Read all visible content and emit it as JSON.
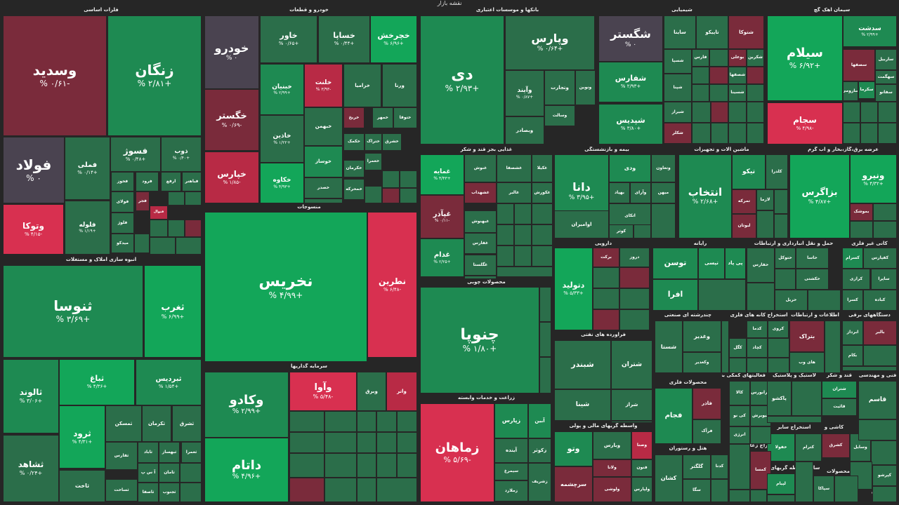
{
  "title": "نقشه بازار",
  "colors": {
    "background": "#262626",
    "neutral": "#4a4350",
    "up1": "#2b6e4a",
    "up2": "#1e8a52",
    "up3": "#13a659",
    "down1": "#7a2b3b",
    "down2": "#b82a45",
    "down3": "#d83050"
  },
  "chart_data": {
    "type": "heatmap",
    "sectors": [
      "فلزات اساسی",
      "خودرو و قطعات",
      "بانکها و موسسات اعتباری",
      "شیمیایی",
      "سیمان آهک گچ",
      "انبوه سازی املاک و مستغلات",
      "منسوجات",
      "غذایی بجز قند و شکر",
      "بیمه و بازنشستگی",
      "ماشین آلات و تجهیزات",
      "عرضه برق،گاز،بخار و آب گرم",
      "محصولات چوبی",
      "دارویی",
      "رایانه",
      "حمل و نقل انبارداری و ارتباطات",
      "کانی غیر فلزی",
      "چندرشته ای صنعتی",
      "اطلاعات و ارتباطات",
      "استخراج کانه های فلزی",
      "دستگاههای برقی",
      "سرمایه گذاریها",
      "زراعت و خدمات وابسته",
      "فرآورده های نفتی",
      "محصولات فلزی",
      "فعالیتهای کمکی به",
      "لاستیک و پلاستیک",
      "قند و شکر",
      "فنی و مهندسی",
      "واسطه گریهای مالی و پولی",
      "استخراج زغال سنگ",
      "استخراج سایر",
      "کاشی و",
      "سایر واسطه گریهای",
      "محصولات",
      "هتل و رستوران",
      "خرده"
    ],
    "tiles": [
      {
        "symbol": "وسدید",
        "change": "-۰/۶۱ %",
        "value": -0.61
      },
      {
        "symbol": "زنگان",
        "change": "+۲/۸۱ %",
        "value": 2.81
      },
      {
        "symbol": "فولاد",
        "change": "۰ %",
        "value": 0
      },
      {
        "symbol": "فملی",
        "change": "+۰/۱۴ %",
        "value": 0.14
      },
      {
        "symbol": "فسوژ",
        "change": "+۰/۴۸ %",
        "value": 0.48
      },
      {
        "symbol": "ذوب",
        "change": "+۰/۴۰ %",
        "value": 0.4
      },
      {
        "symbol": "وتوکا",
        "change": "-۴/۱۵ %",
        "value": -4.15
      },
      {
        "symbol": "فلوله",
        "change": "+۱/۱۹ %",
        "value": 1.19
      },
      {
        "symbol": "فخوز",
        "change": "",
        "value": 0.1
      },
      {
        "symbol": "فرود",
        "change": "",
        "value": 0.2
      },
      {
        "symbol": "ارفع",
        "change": "",
        "value": 0.1
      },
      {
        "symbol": "فباهنر",
        "change": "",
        "value": 0.1
      },
      {
        "symbol": "فجر",
        "change": "",
        "value": -0.2
      },
      {
        "symbol": "فولای",
        "change": "",
        "value": 0.1
      },
      {
        "symbol": "فلوژ",
        "change": "",
        "value": 0.1
      },
      {
        "symbol": "فنوال",
        "change": "",
        "value": -1.5
      },
      {
        "symbol": "میدکو",
        "change": "",
        "value": 0.1
      },
      {
        "symbol": "ثنوسا",
        "change": "+۳/۶۹ %",
        "value": 3.69
      },
      {
        "symbol": "ثغرب",
        "change": "+۶/۹۹ %",
        "value": 6.99
      },
      {
        "symbol": "ثالوند",
        "change": "+۳/۰۶ %",
        "value": 3.06
      },
      {
        "symbol": "ثباغ",
        "change": "+۴/۳۶ %",
        "value": 4.36
      },
      {
        "symbol": "ثبردیس",
        "change": "+۱/۵۴ %",
        "value": 1.54
      },
      {
        "symbol": "ثرود",
        "change": "+۴/۳۱ %",
        "value": 4.31
      },
      {
        "symbol": "ثمسکن",
        "change": "",
        "value": 1.2
      },
      {
        "symbol": "ثکرمان",
        "change": "",
        "value": 0.3
      },
      {
        "symbol": "ثشرق",
        "change": "",
        "value": 1.1
      },
      {
        "symbol": "ثشاهد",
        "change": "+۰/۲۴ %",
        "value": 0.24
      },
      {
        "symbol": "ثاخت",
        "change": "",
        "value": 1.0
      },
      {
        "symbol": "ثفارس",
        "change": "",
        "value": 1.0
      },
      {
        "symbol": "ثاباد",
        "change": "",
        "value": 0.2
      },
      {
        "symbol": "ثبهساز",
        "change": "",
        "value": 0.3
      },
      {
        "symbol": "ثعمرا",
        "change": "",
        "value": 0.2
      },
      {
        "symbol": "آ س پ",
        "change": "",
        "value": 1.0
      },
      {
        "symbol": "ثامان",
        "change": "",
        "value": 0.3
      },
      {
        "symbol": "ثساخت",
        "change": "",
        "value": 0.1
      },
      {
        "symbol": "ثاصفا",
        "change": "",
        "value": 0.1
      },
      {
        "symbol": "ثجنوب",
        "change": "",
        "value": 0.2
      },
      {
        "symbol": "خودرو",
        "change": "۰ %",
        "value": 0
      },
      {
        "symbol": "خاور",
        "change": "+۰/۶۵ %",
        "value": 0.65
      },
      {
        "symbol": "خساپا",
        "change": "+۰/۴۴ %",
        "value": 0.44
      },
      {
        "symbol": "خگستر",
        "change": "-۰/۶۹ %",
        "value": -0.69
      },
      {
        "symbol": "خپارس",
        "change": "-۱/۸۵ %",
        "value": -1.85
      },
      {
        "symbol": "خبنیان",
        "change": "+۲/۹۹ %",
        "value": 2.99
      },
      {
        "symbol": "خلنت",
        "change": "-۳/۹۳ %",
        "value": -3.93
      },
      {
        "symbol": "خزامیا",
        "change": "",
        "value": 0.2
      },
      {
        "symbol": "ورنا",
        "change": "",
        "value": 0.1
      },
      {
        "symbol": "خاذین",
        "change": "+۱/۲۲ %",
        "value": 1.22
      },
      {
        "symbol": "خبهمن",
        "change": "",
        "value": 0.3
      },
      {
        "symbol": "خریخ",
        "change": "",
        "value": -1.2
      },
      {
        "symbol": "خمهر",
        "change": "",
        "value": 0.1
      },
      {
        "symbol": "ختوقا",
        "change": "",
        "value": 0.2
      },
      {
        "symbol": "خکاوه",
        "change": "+۴/۹۳ %",
        "value": 4.93
      },
      {
        "symbol": "خوساز",
        "change": "",
        "value": 2.1
      },
      {
        "symbol": "ختراک",
        "change": "",
        "value": 0.3
      },
      {
        "symbol": "خکمک",
        "change": "",
        "value": 0.1
      },
      {
        "symbol": "خمحرکه",
        "change": "",
        "value": 0.1
      },
      {
        "symbol": "خشرق",
        "change": "",
        "value": 0.2
      },
      {
        "symbol": "خعمرا",
        "change": "",
        "value": 0.1
      },
      {
        "symbol": "خکرمان",
        "change": "",
        "value": 0.1
      },
      {
        "symbol": "خصدر",
        "change": "",
        "value": 0.1
      },
      {
        "symbol": "خچرخش",
        "change": "+۶/۹۶ %",
        "value": 6.96
      },
      {
        "symbol": "نخریس",
        "change": "+۴/۹۹ %",
        "value": 4.99
      },
      {
        "symbol": "نطرین",
        "change": "-۶/۴۸ %",
        "value": -6.48
      },
      {
        "symbol": "دی",
        "change": "+۲/۹۳ %",
        "value": 2.93
      },
      {
        "symbol": "وپارس",
        "change": "+۰/۶۴ %",
        "value": 0.64
      },
      {
        "symbol": "وآیند",
        "change": "+۰/۸۷ %",
        "value": 0.87
      },
      {
        "symbol": "وتجارت",
        "change": "",
        "value": 0.3
      },
      {
        "symbol": "ونوین",
        "change": "",
        "value": 0.2
      },
      {
        "symbol": "وسالت",
        "change": "",
        "value": 0.3
      },
      {
        "symbol": "وبصادر",
        "change": "",
        "value": 0.2
      },
      {
        "symbol": "شگستر",
        "change": "۰ %",
        "value": 0
      },
      {
        "symbol": "شفارس",
        "change": "+۲/۹۳ %",
        "value": 2.93
      },
      {
        "symbol": "شپدیس",
        "change": "+۳/۸۰ %",
        "value": 3.8
      },
      {
        "symbol": "ساینا",
        "change": "",
        "value": 0.3
      },
      {
        "symbol": "تاپیکو",
        "change": "",
        "value": 0.2
      },
      {
        "symbol": "شتوکا",
        "change": "",
        "value": -1.4
      },
      {
        "symbol": "فارس",
        "change": "",
        "value": 0.1
      },
      {
        "symbol": "شکربن",
        "change": "",
        "value": 0.2
      },
      {
        "symbol": "شسپا",
        "change": "",
        "value": 0.2
      },
      {
        "symbol": "شپنا",
        "change": "",
        "value": 0.1
      },
      {
        "symbol": "شیراز",
        "change": "",
        "value": 0.2
      },
      {
        "symbol": "شکلر",
        "change": "",
        "value": -0.2
      },
      {
        "symbol": "بوعلی",
        "change": "",
        "value": -0.3
      },
      {
        "symbol": "شصفها",
        "change": "",
        "value": 0.1
      },
      {
        "symbol": "شسینا",
        "change": "",
        "value": 0.1
      },
      {
        "symbol": "سیلام",
        "change": "+۶/۹۲ %",
        "value": 6.92
      },
      {
        "symbol": "سدشت",
        "change": "+۲/۹۹ %",
        "value": 2.99
      },
      {
        "symbol": "سجام",
        "change": "-۴/۹۸ %",
        "value": -4.98
      },
      {
        "symbol": "سصفها",
        "change": "",
        "value": -0.8
      },
      {
        "symbol": "سفانو",
        "change": "",
        "value": 0.3
      },
      {
        "symbol": "سکرما",
        "change": "",
        "value": 2.0
      },
      {
        "symbol": "سارومی",
        "change": "",
        "value": 0.2
      },
      {
        "symbol": "ساربیل",
        "change": "",
        "value": 0.2
      },
      {
        "symbol": "سهگمت",
        "change": "",
        "value": 0.1
      },
      {
        "symbol": "غمایه",
        "change": "+۴/۴۳ %",
        "value": 4.43
      },
      {
        "symbol": "غنوش",
        "change": "",
        "value": 0.3
      },
      {
        "symbol": "غشصفا",
        "change": "",
        "value": 0.2
      },
      {
        "symbol": "غکیلا",
        "change": "",
        "value": 1.0
      },
      {
        "symbol": "غپآذر",
        "change": "-۰/۱۱ %",
        "value": -0.11
      },
      {
        "symbol": "غشهداب",
        "change": "",
        "value": -1.0
      },
      {
        "symbol": "غالبر",
        "change": "",
        "value": 0.3
      },
      {
        "symbol": "غکورش",
        "change": "",
        "value": 0.2
      },
      {
        "symbol": "غدام",
        "change": "+۲/۲۵ %",
        "value": 2.25
      },
      {
        "symbol": "غبهنوش",
        "change": "",
        "value": 0.2
      },
      {
        "symbol": "غگلستا",
        "change": "",
        "value": 0.1
      },
      {
        "symbol": "غفارس",
        "change": "",
        "value": 0.3
      },
      {
        "symbol": "چنوپا",
        "change": "+۱/۸۰ %",
        "value": 1.8
      },
      {
        "symbol": "دانا",
        "change": "+۳/۹۵ %",
        "value": 3.95
      },
      {
        "symbol": "ودی",
        "change": "",
        "value": 2.0
      },
      {
        "symbol": "وتعاون",
        "change": "",
        "value": 0.3
      },
      {
        "symbol": "بهپاد",
        "change": "",
        "value": 0.2
      },
      {
        "symbol": "وآرای",
        "change": "",
        "value": 0.3
      },
      {
        "symbol": "میهن",
        "change": "",
        "value": 0.2
      },
      {
        "symbol": "اتکای",
        "change": "",
        "value": 0.2
      },
      {
        "symbol": "کوثر",
        "change": "",
        "value": 0.1
      },
      {
        "symbol": "اوامیران",
        "change": "",
        "value": 1.0
      },
      {
        "symbol": "انتخاب",
        "change": "+۲/۶۸ %",
        "value": 2.68
      },
      {
        "symbol": "تیکو",
        "change": "",
        "value": 2.0
      },
      {
        "symbol": "کلدرا",
        "change": "",
        "value": 0.3
      },
      {
        "symbol": "تمرکه",
        "change": "",
        "value": -0.5
      },
      {
        "symbol": "لازما",
        "change": "",
        "value": 0.2
      },
      {
        "symbol": "لبوتان",
        "change": "",
        "value": -0.5
      },
      {
        "symbol": "بزاگرس",
        "change": "+۴/۸۷ %",
        "value": 4.87
      },
      {
        "symbol": "ونیرو",
        "change": "+۴/۳۲ %",
        "value": 4.32
      },
      {
        "symbol": "بموشک",
        "change": "",
        "value": -0.5
      },
      {
        "symbol": "دتولید",
        "change": "+۵/۳۳ %",
        "value": 5.33
      },
      {
        "symbol": "برکت",
        "change": "",
        "value": -0.4
      },
      {
        "symbol": "دروز",
        "change": "",
        "value": 0.3
      },
      {
        "symbol": "توسن",
        "change": "",
        "value": 2.0
      },
      {
        "symbol": "تپسی",
        "change": "",
        "value": 2.0
      },
      {
        "symbol": "پی پاد",
        "change": "",
        "value": 1.5
      },
      {
        "symbol": "افرا",
        "change": "",
        "value": 2.0
      },
      {
        "symbol": "حفارس",
        "change": "",
        "value": 0.3
      },
      {
        "symbol": "حتوکل",
        "change": "",
        "value": 0.1
      },
      {
        "symbol": "حاسا",
        "change": "",
        "value": 0.2
      },
      {
        "symbol": "حکشتی",
        "change": "",
        "value": 0.2
      },
      {
        "symbol": "حریل",
        "change": "",
        "value": 0.3
      },
      {
        "symbol": "کسرام",
        "change": "",
        "value": 1.5
      },
      {
        "symbol": "کفپارس",
        "change": "",
        "value": 1.0
      },
      {
        "symbol": "ساپرا",
        "change": "",
        "value": 1.0
      },
      {
        "symbol": "کرازی",
        "change": "",
        "value": 0.3
      },
      {
        "symbol": "کباده",
        "change": "",
        "value": 0.8
      },
      {
        "symbol": "کسرا",
        "change": "",
        "value": 0.3
      },
      {
        "symbol": "شستا",
        "change": "",
        "value": 0.1
      },
      {
        "symbol": "وغدیر",
        "change": "",
        "value": 0.1
      },
      {
        "symbol": "وکغدیر",
        "change": "",
        "value": 0.1
      },
      {
        "symbol": "کدما",
        "change": "",
        "value": 0.5
      },
      {
        "symbol": "کچاد",
        "change": "",
        "value": 0.3
      },
      {
        "symbol": "کروی",
        "change": "",
        "value": 0.2
      },
      {
        "symbol": "کگل",
        "change": "",
        "value": 0.1
      },
      {
        "symbol": "بتراک",
        "change": "",
        "value": -1.0
      },
      {
        "symbol": "های وب",
        "change": "",
        "value": 0.3
      },
      {
        "symbol": "ابرداز",
        "change": "",
        "value": 0.2
      },
      {
        "symbol": "بالبر",
        "change": "",
        "value": -0.5
      },
      {
        "symbol": "بکام",
        "change": "",
        "value": 0.3
      },
      {
        "symbol": "وآوا",
        "change": "-۵/۴۸ %",
        "value": -5.48
      },
      {
        "symbol": "وبرق",
        "change": "",
        "value": 1.0
      },
      {
        "symbol": "واتر",
        "change": "",
        "value": -2.2
      },
      {
        "symbol": "وکادو",
        "change": "+۲/۹۹ %",
        "value": 2.99
      },
      {
        "symbol": "داتام",
        "change": "+۴/۹۶ %",
        "value": 4.96
      },
      {
        "symbol": "زماهان",
        "change": "-۵/۶۹ %",
        "value": -5.69
      },
      {
        "symbol": "زپارس",
        "change": "",
        "value": 2.0
      },
      {
        "symbol": "آبین",
        "change": "",
        "value": 1.5
      },
      {
        "symbol": "آینده",
        "change": "",
        "value": 0.3
      },
      {
        "symbol": "زکوثر",
        "change": "",
        "value": 0.3
      },
      {
        "symbol": "سیمرغ",
        "change": "",
        "value": 0.2
      },
      {
        "symbol": "زملارد",
        "change": "",
        "value": 0.2
      },
      {
        "symbol": "زشریف",
        "change": "",
        "value": 0.1
      },
      {
        "symbol": "شبندر",
        "change": "",
        "value": 0.3
      },
      {
        "symbol": "شتران",
        "change": "",
        "value": 0.3
      },
      {
        "symbol": "شینا",
        "change": "",
        "value": 0.2
      },
      {
        "symbol": "شراز",
        "change": "",
        "value": 0.3
      },
      {
        "symbol": "فجام",
        "change": "",
        "value": 2.0
      },
      {
        "symbol": "فاذر",
        "change": "",
        "value": -0.6
      },
      {
        "symbol": "فرآک",
        "change": "",
        "value": 0.1
      },
      {
        "symbol": "وتو",
        "change": "",
        "value": 1.5
      },
      {
        "symbol": "وبارس",
        "change": "",
        "value": 1.2
      },
      {
        "symbol": "وصنا",
        "change": "",
        "value": -1.5
      },
      {
        "symbol": "ولانا",
        "change": "",
        "value": -0.5
      },
      {
        "symbol": "ولوشی",
        "change": "",
        "value": -0.5
      },
      {
        "symbol": "سرچشمه",
        "change": "",
        "value": -0.3
      },
      {
        "symbol": "فنون",
        "change": "",
        "value": 0.3
      },
      {
        "symbol": "ولپارس",
        "change": "",
        "value": 0.3
      },
      {
        "symbol": "کشان",
        "change": "",
        "value": 0.2
      },
      {
        "symbol": "گلگتر",
        "change": "",
        "value": 0.3
      },
      {
        "symbol": "کدنا",
        "change": "",
        "value": 0.2
      },
      {
        "symbol": "سگا",
        "change": "",
        "value": 0.2
      },
      {
        "symbol": "کالا",
        "change": "",
        "value": 0.5
      },
      {
        "symbol": "فرابورس",
        "change": "",
        "value": 0.3
      },
      {
        "symbol": "کی نو",
        "change": "",
        "value": 0.2
      },
      {
        "symbol": "انرژی",
        "change": "",
        "value": 0.3
      },
      {
        "symbol": "کیوبرش",
        "change": "",
        "value": 0.3
      },
      {
        "symbol": "پاکشو",
        "change": "",
        "value": 0.2
      },
      {
        "symbol": "شتران",
        "change": "",
        "value": 1.5
      },
      {
        "symbol": "قائیت",
        "change": "",
        "value": 0.2
      },
      {
        "symbol": "قاسم",
        "change": "",
        "value": 0.1
      },
      {
        "symbol": "خفولا",
        "change": "",
        "value": 3.0
      },
      {
        "symbol": "کمسا",
        "change": "",
        "value": -0.5
      },
      {
        "symbol": "کشرق",
        "change": "",
        "value": -1.2
      },
      {
        "symbol": "کترام",
        "change": "",
        "value": 0.3
      },
      {
        "symbol": "وسایل",
        "change": "",
        "value": 0.2
      },
      {
        "symbol": "لپیام",
        "change": "",
        "value": 2.0
      },
      {
        "symbol": "سپاکا",
        "change": "",
        "value": 0.2
      },
      {
        "symbol": "کپرشو",
        "change": "",
        "value": 0.2
      },
      {
        "symbol": "وپارس",
        "change": "",
        "value": 1.5
      },
      {
        "symbol": "چکاپا",
        "change": "",
        "value": 0.2
      },
      {
        "symbol": "پسمانکاری",
        "change": "",
        "value": 0.1
      }
    ]
  }
}
